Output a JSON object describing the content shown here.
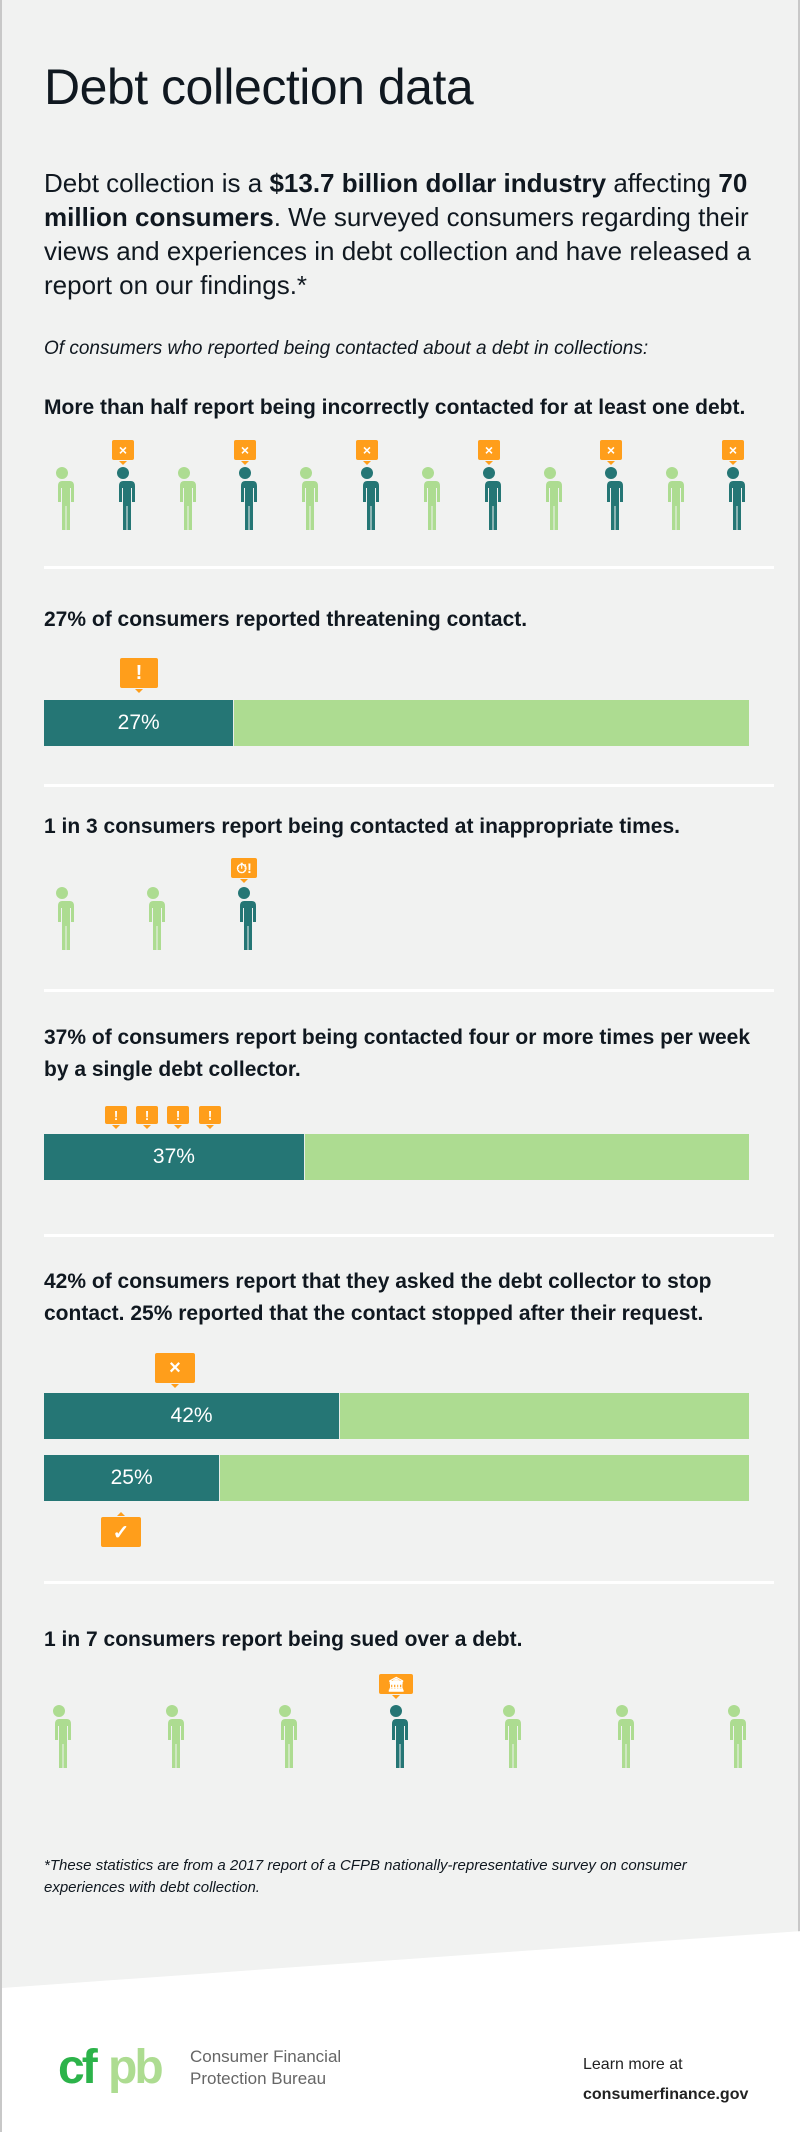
{
  "title": "Debt collection data",
  "intro": {
    "t1": "Debt collection is a ",
    "b1": "$13.7 billion dollar industry",
    "t2": " affecting ",
    "b2": "70 million consumers",
    "t3": ". We surveyed consumers regarding their views and experiences in debt collection and have released a report on our findings.*"
  },
  "lead": "Of consumers who reported being contacted about a debt in collections:",
  "sections": [
    {
      "heading": "More than half report being incorrectly contacted for at least one debt.",
      "people": 12,
      "highlighted": [
        1,
        3,
        5,
        7,
        9,
        11
      ],
      "badge_icon": "x-icon",
      "badge_text": "×"
    },
    {
      "heading": "27% of consumers reported threatening contact.",
      "bar": {
        "value": 27,
        "label": "27%"
      },
      "badge_icon": "exclamation-icon",
      "badge_text": "!"
    },
    {
      "heading": "1 in 3 consumers report being contacted at inappropriate times.",
      "people": 3,
      "highlighted": [
        2
      ],
      "badge_icon": "clock-alert-icon",
      "badge_text": "⏱!"
    },
    {
      "heading": "37% of consumers report being contacted four or more times per week by a single debt collector.",
      "bar": {
        "value": 37,
        "label": "37%"
      },
      "badge_icon": "exclamation-icon",
      "badge_text": "!",
      "badge_count": 4
    },
    {
      "heading": "42% of consumers report that they asked the debt collector to stop contact. 25% reported that the contact stopped after their request.",
      "bars": [
        {
          "value": 42,
          "label": "42%",
          "badge_icon": "x-icon",
          "badge_text": "×"
        },
        {
          "value": 25,
          "label": "25%",
          "badge_icon": "check-icon",
          "badge_text": "✓"
        }
      ]
    },
    {
      "heading": "1 in 7 consumers report being sued over a debt.",
      "people": 7,
      "highlighted": [
        3
      ],
      "badge_icon": "courthouse-icon",
      "badge_text": "🏛"
    }
  ],
  "footnote": "*These statistics are from a 2017 report of a CFPB nationally-representative survey on consumer experiences with debt collection.",
  "logo": {
    "text": "cfpb",
    "org_line1": "Consumer Financial",
    "org_line2": "Protection Bureau"
  },
  "learn": {
    "label": "Learn more at",
    "link": "consumerfinance.gov"
  },
  "colors": {
    "dark": "#257675",
    "light": "#addc91",
    "accent": "#ff9e1b",
    "background": "#f1f2f1"
  }
}
